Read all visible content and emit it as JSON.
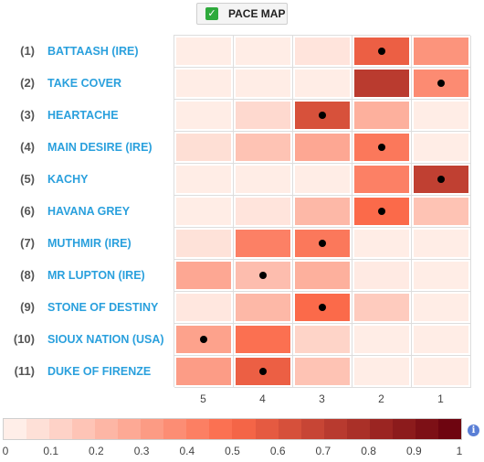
{
  "toggle": {
    "label": "PACE MAP",
    "checked": true,
    "icon": "check-icon"
  },
  "columns": [
    "5",
    "4",
    "3",
    "2",
    "1"
  ],
  "rows": [
    {
      "rank": "(1)",
      "horse": "BATTAASH (IRE)",
      "cells": [
        0.03,
        0.03,
        0.06,
        0.55,
        0.35
      ],
      "marker": 3
    },
    {
      "rank": "(2)",
      "horse": "TAKE COVER",
      "cells": [
        0.03,
        0.03,
        0.03,
        0.72,
        0.38
      ],
      "marker": 4
    },
    {
      "rank": "(3)",
      "horse": "HEARTACHE",
      "cells": [
        0.03,
        0.1,
        0.62,
        0.25,
        0.03
      ],
      "marker": 2
    },
    {
      "rank": "(4)",
      "horse": "MAIN DESIRE (IRE)",
      "cells": [
        0.08,
        0.18,
        0.28,
        0.45,
        0.03
      ],
      "marker": 3
    },
    {
      "rank": "(5)",
      "horse": "KACHY",
      "cells": [
        0.03,
        0.03,
        0.03,
        0.42,
        0.7
      ],
      "marker": 4
    },
    {
      "rank": "(6)",
      "horse": "HAVANA GREY",
      "cells": [
        0.03,
        0.06,
        0.22,
        0.5,
        0.18
      ],
      "marker": 3
    },
    {
      "rank": "(7)",
      "horse": "MUTHMIR (IRE)",
      "cells": [
        0.07,
        0.42,
        0.45,
        0.03,
        0.03
      ],
      "marker": 2
    },
    {
      "rank": "(8)",
      "horse": "MR LUPTON (IRE)",
      "cells": [
        0.28,
        0.2,
        0.25,
        0.04,
        0.03
      ],
      "marker": 1
    },
    {
      "rank": "(9)",
      "horse": "STONE OF DESTINY",
      "cells": [
        0.05,
        0.22,
        0.5,
        0.15,
        0.03
      ],
      "marker": 2
    },
    {
      "rank": "(10)",
      "horse": "SIOUX NATION (USA)",
      "cells": [
        0.3,
        0.48,
        0.12,
        0.03,
        0.03
      ],
      "marker": 0
    },
    {
      "rank": "(11)",
      "horse": "DUKE OF FIRENZE",
      "cells": [
        0.32,
        0.55,
        0.18,
        0.03,
        0.03
      ],
      "marker": 1
    }
  ],
  "legend": {
    "ticks": [
      "0",
      "0.1",
      "0.2",
      "0.3",
      "0.4",
      "0.5",
      "0.6",
      "0.7",
      "0.8",
      "0.9",
      "1"
    ],
    "swatches": 20,
    "icon": "info-icon"
  },
  "colors": {
    "low": "#fff5f0",
    "mid": "#fb6a4a",
    "high": "#67000d",
    "link": "#2aa0dd",
    "check": "#2eaa3c",
    "marker": "#000000"
  }
}
